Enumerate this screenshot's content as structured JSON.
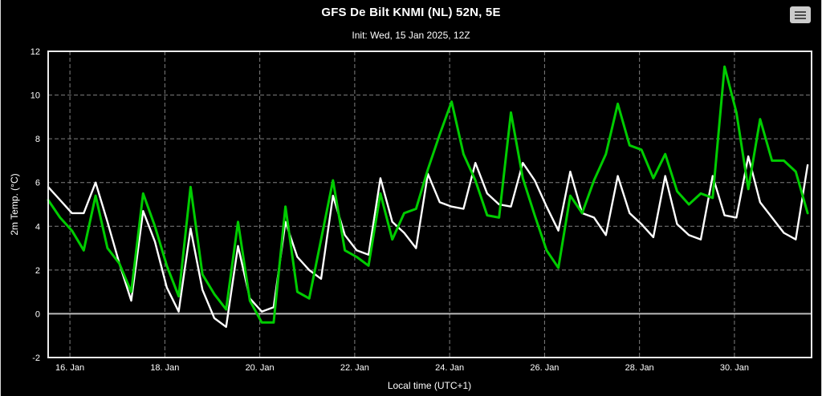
{
  "header": {
    "title": "GFS De Bilt KNMI (NL) 52N, 5E",
    "subtitle": "Init: Wed, 15 Jan 2025, 12Z"
  },
  "menu_button": {
    "icon": "hamburger-icon"
  },
  "colors": {
    "background": "#000000",
    "text": "#ffffff",
    "grid": "#7f7f7f",
    "zero_line": "#bbbbbb",
    "plot_border": "#ececec",
    "series_white": "#ffffff",
    "series_green": "#00cc00"
  },
  "chart_data": {
    "type": "line",
    "title": "GFS De Bilt KNMI (NL) 52N, 5E",
    "subtitle": "Init: Wed, 15 Jan 2025, 12Z",
    "xlabel": "Local time (UTC+1)",
    "ylabel": "2m Temp. (°C)",
    "ylim": [
      -2,
      12
    ],
    "y_ticks": [
      -2,
      0,
      2,
      4,
      6,
      8,
      10,
      12
    ],
    "x_tick_labels": [
      "16. Jan",
      "18. Jan",
      "20. Jan",
      "22. Jan",
      "24. Jan",
      "26. Jan",
      "28. Jan",
      "30. Jan"
    ],
    "x_tick_hours": [
      11,
      59,
      107,
      155,
      203,
      251,
      299,
      347
    ],
    "x_domain_hours": [
      0,
      386
    ],
    "x_start": "Wed, 15 Jan 2025, 13:00 local (init 12Z)",
    "x_step_hours": 6,
    "grid": "dashed",
    "zero_line": true,
    "legend": "none",
    "series": [
      {
        "name": "white",
        "color": "#ffffff",
        "width": 2.4,
        "values": [
          5.8,
          5.2,
          4.6,
          4.6,
          6.0,
          4.2,
          2.3,
          0.6,
          4.7,
          3.3,
          1.2,
          0.1,
          3.9,
          1.1,
          -0.2,
          -0.6,
          3.1,
          0.7,
          0.1,
          0.3,
          4.2,
          2.6,
          2.0,
          1.6,
          5.4,
          3.6,
          2.9,
          2.7,
          6.2,
          4.2,
          3.7,
          3.0,
          6.4,
          5.1,
          4.9,
          4.8,
          6.9,
          5.5,
          5.0,
          4.9,
          6.9,
          6.1,
          4.9,
          3.8,
          6.5,
          4.6,
          4.4,
          3.6,
          6.3,
          4.6,
          4.1,
          3.5,
          6.3,
          4.1,
          3.6,
          3.4,
          6.3,
          4.5,
          4.4,
          7.2,
          5.1,
          4.4,
          3.7,
          3.4,
          6.8
        ]
      },
      {
        "name": "green",
        "color": "#00cc00",
        "width": 3,
        "values": [
          5.2,
          4.4,
          3.8,
          2.9,
          5.4,
          3.0,
          2.3,
          1.0,
          5.5,
          4.0,
          2.2,
          0.8,
          5.8,
          1.8,
          0.9,
          0.2,
          4.2,
          0.6,
          -0.4,
          -0.4,
          4.9,
          1.0,
          0.7,
          3.4,
          6.1,
          2.9,
          2.6,
          2.2,
          5.5,
          3.4,
          4.6,
          4.8,
          6.6,
          8.2,
          9.7,
          7.3,
          6.1,
          4.5,
          4.4,
          9.2,
          6.2,
          4.5,
          2.9,
          2.1,
          5.4,
          4.6,
          6.1,
          7.3,
          9.6,
          7.7,
          7.5,
          6.2,
          7.3,
          5.6,
          5.0,
          5.5,
          5.3,
          11.3,
          9.2,
          5.7,
          8.9,
          7.0,
          7.0,
          6.5,
          4.6
        ]
      }
    ]
  }
}
